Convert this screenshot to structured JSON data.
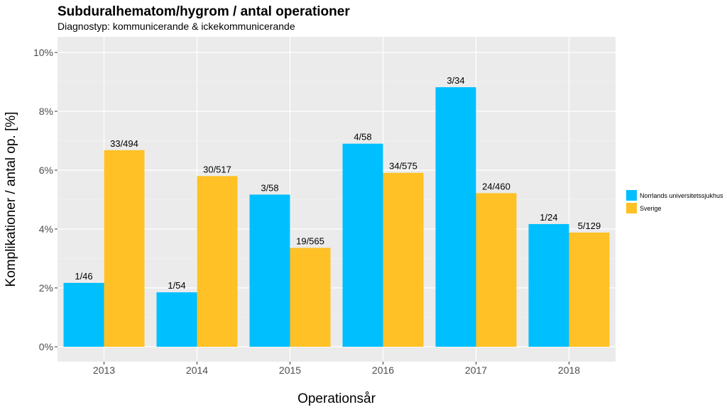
{
  "chart_data": {
    "type": "bar",
    "title": "Subduralhematom/hygrom / antal operationer",
    "subtitle": "Diagnostyp: kommunicerande & ickekommunicerande",
    "xlabel": "Operationsår",
    "ylabel": "Komplikationer / antal op. [%]",
    "categories": [
      "2013",
      "2014",
      "2015",
      "2016",
      "2017",
      "2018"
    ],
    "ylim": [
      0,
      10.5
    ],
    "yticks": [
      0,
      2,
      4,
      6,
      8,
      10
    ],
    "ytick_labels": [
      "0%",
      "2%",
      "4%",
      "6%",
      "8%",
      "10%"
    ],
    "grid": true,
    "legend_position": "right",
    "series": [
      {
        "name": "Norrlands universitetssjukhus",
        "color": "#00BFFF",
        "values": [
          2.17,
          1.85,
          5.17,
          6.9,
          8.82,
          4.17
        ],
        "labels": [
          "1/46",
          "1/54",
          "3/58",
          "4/58",
          "3/34",
          "1/24"
        ]
      },
      {
        "name": "Sverige",
        "color": "#FFC125",
        "values": [
          6.68,
          5.8,
          3.36,
          5.91,
          5.22,
          3.88
        ],
        "labels": [
          "33/494",
          "30/517",
          "19/565",
          "34/575",
          "24/460",
          "5/129"
        ]
      }
    ]
  }
}
